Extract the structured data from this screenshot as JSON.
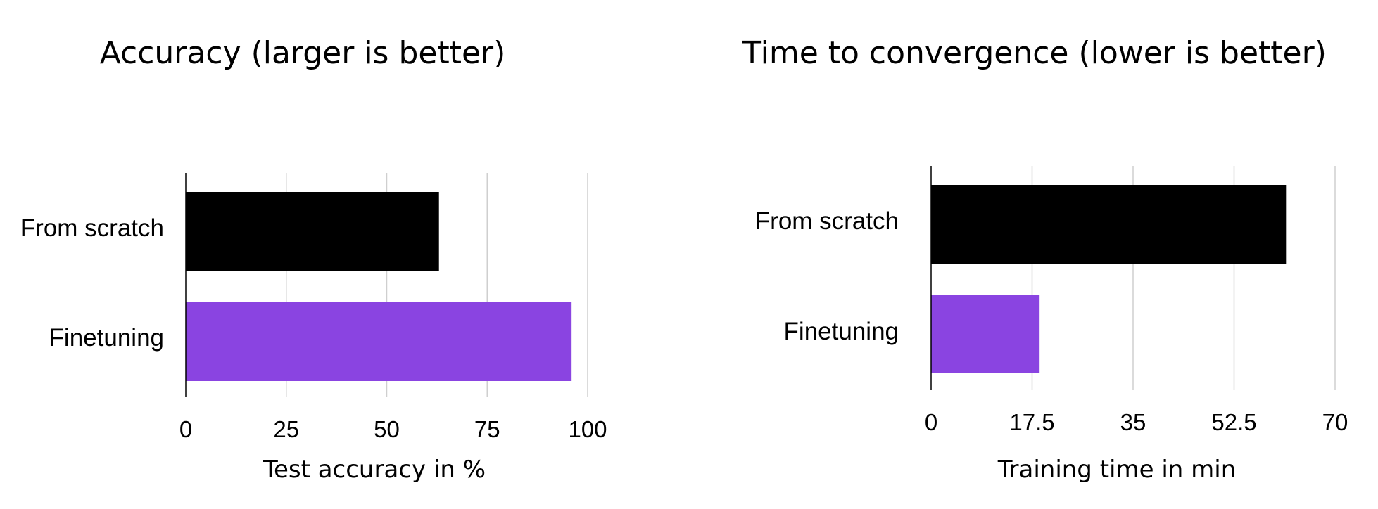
{
  "chart_data": [
    {
      "type": "bar",
      "orientation": "horizontal",
      "title": "Accuracy (larger is better)",
      "xlabel": "Test accuracy in %",
      "ylabel": "",
      "categories": [
        "From scratch",
        "Finetuning"
      ],
      "values": [
        63,
        96
      ],
      "colors": [
        "#000000",
        "#8a44e1"
      ],
      "xlim": [
        0,
        100
      ],
      "ticks": [
        0,
        25,
        50,
        75,
        100
      ],
      "tick_labels": [
        "0",
        "25",
        "50",
        "75",
        "100"
      ],
      "grid": true
    },
    {
      "type": "bar",
      "orientation": "horizontal",
      "title": "Time to convergence (lower is better)",
      "xlabel": "Training time in min",
      "ylabel": "",
      "categories": [
        "From scratch",
        "Finetuning"
      ],
      "values": [
        61.5,
        18.8
      ],
      "colors": [
        "#000000",
        "#8a44e1"
      ],
      "xlim": [
        0,
        70
      ],
      "ticks": [
        0,
        17.5,
        35,
        52.5,
        70
      ],
      "tick_labels": [
        "0",
        "17.5",
        "35",
        "52.5",
        "70"
      ],
      "grid": true
    }
  ]
}
